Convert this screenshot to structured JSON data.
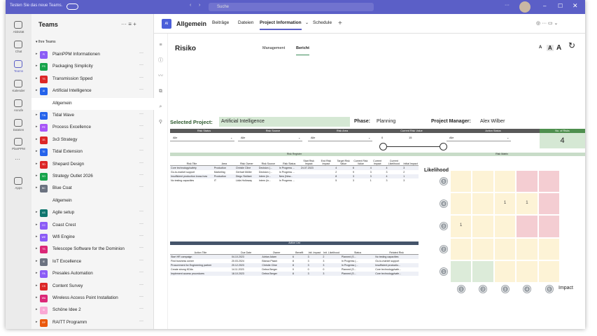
{
  "titlebar": {
    "promo": "Testen Sie das neue Teams.",
    "search": "Suche"
  },
  "rail": [
    "Aktivität",
    "Chat",
    "Teams",
    "Kalender",
    "Anrufe",
    "Dateien",
    "PlanPPM",
    "Apps"
  ],
  "teams_panel": {
    "title": "Teams",
    "section": "Ihre Teams",
    "teams": [
      {
        "initials": "PI",
        "name": "PlainPPM Informationen",
        "color": "#8b5cf6"
      },
      {
        "initials": "PS",
        "name": "Packaging Simplicity",
        "color": "#16a34a"
      },
      {
        "initials": "TS",
        "name": "Transmission Spped",
        "color": "#dc2626"
      },
      {
        "initials": "AI",
        "name": "Artificial Intelligence",
        "color": "#2563eb",
        "channels": [
          "Allgemein"
        ]
      },
      {
        "initials": "TW",
        "name": "Tidal Wave",
        "color": "#2563eb"
      },
      {
        "initials": "PE",
        "name": "Process Excellence",
        "color": "#a855f7"
      },
      {
        "initials": "3S",
        "name": "3x3 Strategy",
        "color": "#dc2626"
      },
      {
        "initials": "TE",
        "name": "Tidal Extension",
        "color": "#2563eb"
      },
      {
        "initials": "SD",
        "name": "Shepard Design",
        "color": "#dc2626"
      },
      {
        "initials": "SO",
        "name": "Strategy Outlet 2026",
        "color": "#16a34a"
      },
      {
        "initials": "BC",
        "name": "Blue Coat",
        "color": "#6b7280",
        "channels": [
          "Allgemein"
        ]
      },
      {
        "initials": "AS",
        "name": "Agile setup",
        "color": "#0f766e"
      },
      {
        "initials": "CC",
        "name": "Coast Crest",
        "color": "#8b5cf6"
      },
      {
        "initials": "WE",
        "name": "Wifi Engine",
        "color": "#8b5cf6"
      },
      {
        "initials": "TS",
        "name": "Telescope Software for the Dominion",
        "color": "#db2777"
      },
      {
        "initials": "IE",
        "name": "IoT Excellence",
        "color": "#6b7280"
      },
      {
        "initials": "PA",
        "name": "Presales Automation",
        "color": "#8b5cf6"
      },
      {
        "initials": "CS",
        "name": "Content Survey",
        "color": "#dc2626"
      },
      {
        "initials": "WA",
        "name": "Wireless Access Point Installation",
        "color": "#db2777"
      },
      {
        "initials": "SI",
        "name": "Schöne Idee 2",
        "color": "#f9a8d4"
      },
      {
        "initials": "RP",
        "name": "RAITT Programm",
        "color": "#ea580c"
      }
    ]
  },
  "channel_header": {
    "icon": "AI",
    "channel": "Allgemein",
    "tabs": [
      "Beiträge",
      "Dateien",
      "Project Information",
      "Schedule"
    ]
  },
  "report": {
    "title": "Risiko",
    "tabs": [
      "Management",
      "Bericht"
    ],
    "font_buttons": [
      "A",
      "A",
      "A"
    ],
    "project": {
      "label": "Selected Project:",
      "value": "Artificial Intelligence",
      "phase_label": "Phase:",
      "phase": "Planning",
      "pm_label": "Project Manager:",
      "pm": "Alex Wilber"
    },
    "filters": {
      "headers": [
        "Risk Status",
        "Risk Source",
        "Risk Area",
        "Current Risk Value",
        "Action Status",
        "No. of Risks"
      ],
      "values": [
        "Alle",
        "Alle",
        "Alle",
        "Alle"
      ],
      "slider": [
        0,
        15
      ],
      "count": 4
    },
    "register": {
      "title": "Risk Register",
      "columns": [
        "Risk Title",
        "Area",
        "Risk Owner",
        "Risk Source",
        "Risk Status",
        "Start Risk Impact",
        "End Risk Impact",
        "Target Risk Value",
        "Current Risk Value",
        "Current Impact",
        "Current Likelihood",
        "Initial Impact"
      ],
      "rows": [
        [
          "Core technology/safety",
          "Production",
          "Christie Cline",
          "Decision (...",
          "In Progress ...",
          "24.07.2023",
          null,
          4,
          6,
          4,
          4,
          3
        ],
        [
          "Go-to-market support",
          "Marketing",
          "Gerhart Müller",
          "Decision (...",
          "In Progress ...",
          null,
          null,
          2,
          9,
          3,
          3,
          2
        ],
        [
          "Insufficient production know-how",
          "Production",
          "Diego Siciliani",
          "Intern (In...",
          "New (New...",
          null,
          null,
          8,
          3,
          3,
          4,
          1
        ],
        [
          "No testing capacities",
          "IT",
          "Lidia Holloway",
          "Intern (In...",
          "In Progress ...",
          null,
          null,
          5,
          3,
          1,
          3,
          3
        ]
      ]
    },
    "matrix": {
      "title": "Risk Matrix",
      "y_title": "Likelihood",
      "x_title": "Impact",
      "likelihood_labels": [
        5,
        4,
        3,
        2,
        1
      ],
      "impact_labels": [
        1,
        2,
        3,
        4,
        5
      ],
      "counts": [
        [
          null,
          null,
          null,
          null,
          null
        ],
        [
          null,
          null,
          1,
          1,
          null
        ],
        [
          1,
          null,
          null,
          null,
          null
        ],
        [
          null,
          null,
          null,
          null,
          null
        ],
        [
          null,
          null,
          null,
          null,
          null
        ]
      ],
      "colors": [
        [
          "#fdf3d6",
          "#fdf3d6",
          "#fdf3d6",
          "#f4cdd2",
          "#f4cdd2"
        ],
        [
          "#fdf3d6",
          "#fdf3d6",
          "#fdf3d6",
          "#fdf3d6",
          "#f4cdd2"
        ],
        [
          "#fdf3d6",
          "#fdf3d6",
          "#fdf3d6",
          "#f4cdd2",
          "#f4cdd2"
        ],
        [
          "#fdf3d6",
          "#fdf3d6",
          "#fdf3d6",
          "#fdf3d6",
          "#fdf3d6"
        ],
        [
          "#dcebd9",
          "#dcebd9",
          "#fdf3d6",
          "#fdf3d6",
          "#fdf3d6"
        ]
      ]
    },
    "actions": {
      "title": "Action List",
      "columns": [
        "Action Title",
        "Due Date",
        "Owner",
        "Benefit",
        "Init. Impact",
        "Init. Likelihood",
        "Status",
        "Related Risk"
      ],
      "rows": [
        [
          "Start HR campaign",
          "04.10.2023",
          "Adrian Adam",
          6,
          3,
          2,
          "Planned (S...",
          "No testing capacities"
        ],
        [
          "Find business owner",
          "20.03.2024",
          "Bianca Pisani",
          8,
          3,
          3,
          "In Progress (...",
          "Go-to-market support"
        ],
        [
          "Procurement for Engineering partner",
          "20.12.2023",
          "Christie Cline",
          8,
          3,
          3,
          "In Progress (...",
          "Insufficient productio..."
        ],
        [
          "Create strong KDAs",
          "14.11.2023",
          "Debra Berger",
          0,
          0,
          0,
          "Planned (S...",
          "Core technology/safe..."
        ],
        [
          "Implement access procedures",
          "18.10.2023",
          "Debra Berger",
          8,
          3,
          3,
          "Planned (S...",
          "Core technology/safe..."
        ]
      ]
    }
  }
}
